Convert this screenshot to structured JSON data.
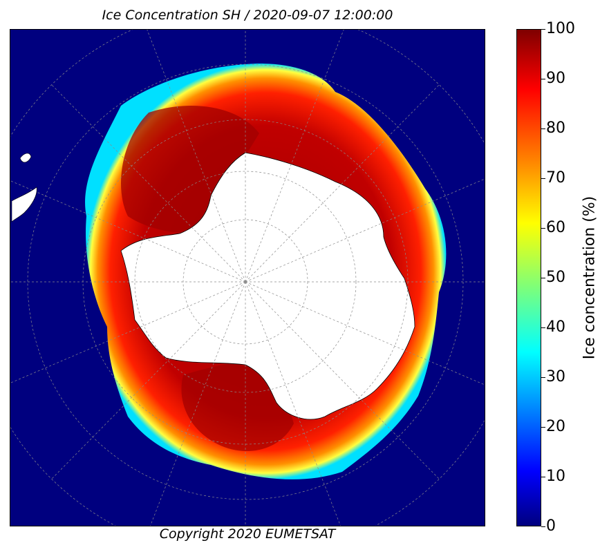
{
  "map": {
    "title": "Ice Concentration SH / 2020-09-07 12:00:00",
    "copyright": "Copyright 2020 EUMETSAT",
    "region": "Antarctica",
    "colors": {
      "open_water": "#00007f",
      "ice_edge_cyan": "#00ffff",
      "ice_mid": "#ff0000",
      "ice_dense": "#a00000",
      "land": "#ffffff",
      "graticule": "#8a8a8a"
    }
  },
  "colorbar": {
    "label": "Ice concentration (%)",
    "ticks": [
      "0",
      "10",
      "20",
      "30",
      "40",
      "50",
      "60",
      "70",
      "80",
      "90",
      "100"
    ]
  }
}
